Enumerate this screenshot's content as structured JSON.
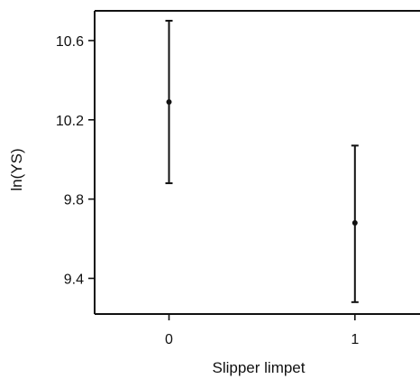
{
  "chart_data": {
    "type": "scatter",
    "title": "",
    "xlabel": "Slipper limpet",
    "ylabel": "ln(YS)",
    "categories": [
      "0",
      "1"
    ],
    "x": [
      0,
      1
    ],
    "y": [
      10.29,
      9.68
    ],
    "y_lower": [
      9.88,
      9.28
    ],
    "y_upper": [
      10.7,
      10.07
    ],
    "xlim": [
      -0.4,
      1.35
    ],
    "ylim": [
      9.22,
      10.75
    ],
    "yticks": [
      9.4,
      9.8,
      10.2,
      10.6
    ],
    "ytick_labels": [
      "9.4",
      "9.8",
      "10.2",
      "10.6"
    ],
    "xtick_labels": [
      "0",
      "1"
    ],
    "grid": false,
    "legend": "none",
    "colors": {
      "marks": "#111111",
      "frame": "#111111"
    }
  }
}
